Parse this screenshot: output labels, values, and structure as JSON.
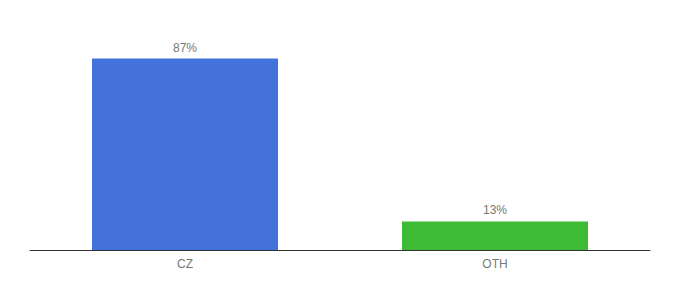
{
  "chart_data": {
    "type": "bar",
    "categories": [
      "CZ",
      "OTH"
    ],
    "values": [
      87,
      13
    ],
    "value_labels": [
      "87%",
      "13%"
    ],
    "data_labels": true,
    "colors": [
      "#4472db",
      "#3dbb35"
    ],
    "ylim": [
      0,
      100
    ],
    "grid": false,
    "tick_labels": "x"
  }
}
